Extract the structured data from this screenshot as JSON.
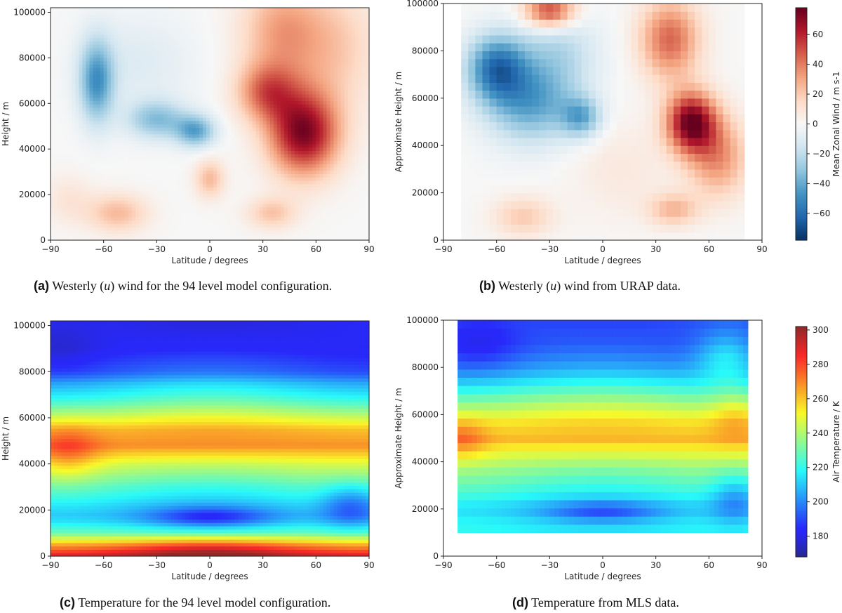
{
  "chart_data": [
    {
      "type": "heatmap",
      "panel": "a",
      "caption_label": "(a)",
      "caption_parts": [
        "Westerly (",
        "u",
        ") wind for the 94 level model configuration."
      ],
      "xlabel": "Latitude / degrees",
      "ylabel": "Height / m",
      "xlim": [
        -90,
        90
      ],
      "ylim": [
        0,
        102000
      ],
      "xticks": [
        -90,
        -60,
        -30,
        0,
        30,
        60,
        90
      ],
      "yticks": [
        0,
        20000,
        40000,
        60000,
        80000,
        100000
      ],
      "colormap": "RdBu_r",
      "vrange": [
        -78,
        78
      ],
      "data_lat_range": [
        -90,
        90
      ],
      "data_height_range": [
        0,
        102000
      ],
      "smooth": true,
      "features": [
        {
          "lat": -64,
          "height": 70000,
          "value": -45,
          "lat_spread": 7,
          "height_spread": 13000
        },
        {
          "lat": -30,
          "height": 53000,
          "value": -32,
          "lat_spread": 12,
          "height_spread": 6000
        },
        {
          "lat": -8,
          "height": 48000,
          "value": -40,
          "lat_spread": 8,
          "height_spread": 5000
        },
        {
          "lat": -40,
          "height": 78000,
          "value": -10,
          "lat_spread": 22,
          "height_spread": 15000
        },
        {
          "lat": 53,
          "height": 47000,
          "value": 72,
          "lat_spread": 14,
          "height_spread": 13000
        },
        {
          "lat": 32,
          "height": 65000,
          "value": 40,
          "lat_spread": 12,
          "height_spread": 9000
        },
        {
          "lat": 40,
          "height": 92000,
          "value": 30,
          "lat_spread": 16,
          "height_spread": 16000
        },
        {
          "lat": 70,
          "height": 85000,
          "value": 20,
          "lat_spread": 18,
          "height_spread": 20000
        },
        {
          "lat": 0,
          "height": 27000,
          "value": 25,
          "lat_spread": 6,
          "height_spread": 6000
        },
        {
          "lat": -52,
          "height": 12000,
          "value": 25,
          "lat_spread": 12,
          "height_spread": 6000
        },
        {
          "lat": 35,
          "height": 12000,
          "value": 22,
          "lat_spread": 10,
          "height_spread": 5000
        },
        {
          "lat": -80,
          "height": 18000,
          "value": 10,
          "lat_spread": 10,
          "height_spread": 8000
        }
      ]
    },
    {
      "type": "heatmap",
      "panel": "b",
      "caption_label": "(b)",
      "caption_parts": [
        "Westerly (",
        "u",
        ") wind from URAP data."
      ],
      "xlabel": "Latitude / degrees",
      "ylabel": "Approximate Height / m",
      "xlim": [
        -90,
        90
      ],
      "ylim": [
        0,
        100000
      ],
      "xticks": [
        -90,
        -60,
        -30,
        0,
        30,
        60,
        90
      ],
      "yticks": [
        0,
        20000,
        40000,
        60000,
        80000,
        100000
      ],
      "colormap": "RdBu_r",
      "vrange": [
        -78,
        78
      ],
      "data_lat_range": [
        -80,
        80
      ],
      "data_height_range": [
        0,
        100000
      ],
      "smooth": false,
      "cells": [
        40,
        30
      ],
      "features": [
        {
          "lat": -60,
          "height": 73000,
          "value": -55,
          "lat_spread": 12,
          "height_spread": 10000
        },
        {
          "lat": -40,
          "height": 58000,
          "value": -40,
          "lat_spread": 18,
          "height_spread": 12000
        },
        {
          "lat": -12,
          "height": 52000,
          "value": -35,
          "lat_spread": 8,
          "height_spread": 6000
        },
        {
          "lat": -25,
          "height": 80000,
          "value": -20,
          "lat_spread": 16,
          "height_spread": 12000
        },
        {
          "lat": 50,
          "height": 50000,
          "value": 75,
          "lat_spread": 10,
          "height_spread": 9000
        },
        {
          "lat": 38,
          "height": 85000,
          "value": 45,
          "lat_spread": 12,
          "height_spread": 12000
        },
        {
          "lat": 65,
          "height": 35000,
          "value": 35,
          "lat_spread": 12,
          "height_spread": 12000
        },
        {
          "lat": -30,
          "height": 97000,
          "value": 55,
          "lat_spread": 10,
          "height_spread": 5000
        },
        {
          "lat": 40,
          "height": 13000,
          "value": 25,
          "lat_spread": 10,
          "height_spread": 5000
        },
        {
          "lat": -45,
          "height": 10000,
          "value": 20,
          "lat_spread": 12,
          "height_spread": 6000
        },
        {
          "lat": 10,
          "height": 30000,
          "value": 8,
          "lat_spread": 20,
          "height_spread": 15000
        }
      ]
    },
    {
      "type": "heatmap",
      "panel": "c",
      "caption_label": "(c)",
      "caption_parts": [
        "Temperature for the 94 level model configuration."
      ],
      "xlabel": "Latitude / degrees",
      "ylabel": "Height / m",
      "xlim": [
        -90,
        90
      ],
      "ylim": [
        0,
        102000
      ],
      "xticks": [
        -90,
        -60,
        -30,
        0,
        30,
        60,
        90
      ],
      "yticks": [
        0,
        20000,
        40000,
        60000,
        80000,
        100000
      ],
      "colormap": "jet",
      "vrange": [
        170,
        300
      ],
      "data_lat_range": [
        -90,
        90
      ],
      "data_height_range": [
        0,
        102000
      ],
      "smooth": true,
      "profile": {
        "heights": [
          0,
          5000,
          10000,
          15000,
          18000,
          22000,
          30000,
          40000,
          48000,
          55000,
          62000,
          68000,
          75000,
          80000,
          90000,
          102000
        ],
        "values": [
          290,
          262,
          228,
          212,
          208,
          212,
          225,
          245,
          268,
          262,
          242,
          225,
          210,
          195,
          185,
          182
        ]
      },
      "features": [
        {
          "lat": 0,
          "height": 3000,
          "value": 20,
          "lat_spread": 35,
          "height_spread": 4000
        },
        {
          "lat": 0,
          "height": 17000,
          "value": -20,
          "lat_spread": 22,
          "height_spread": 3000
        },
        {
          "lat": 80,
          "height": 22000,
          "value": -20,
          "lat_spread": 12,
          "height_spread": 7000
        },
        {
          "lat": -80,
          "height": 45000,
          "value": 15,
          "lat_spread": 12,
          "height_spread": 8000
        },
        {
          "lat": -85,
          "height": 90000,
          "value": -5,
          "lat_spread": 15,
          "height_spread": 8000
        }
      ]
    },
    {
      "type": "heatmap",
      "panel": "d",
      "caption_label": "(d)",
      "caption_parts": [
        "Temperature from MLS data."
      ],
      "xlabel": "Latitude / degrees",
      "ylabel": "Approximate Height / m",
      "xlim": [
        -90,
        90
      ],
      "ylim": [
        0,
        100000
      ],
      "xticks": [
        -90,
        -60,
        -30,
        0,
        30,
        60,
        90
      ],
      "yticks": [
        0,
        20000,
        40000,
        60000,
        80000,
        100000
      ],
      "colormap": "jet",
      "vrange": [
        168,
        302
      ],
      "data_lat_range": [
        -82,
        82
      ],
      "data_height_range": [
        10000,
        100000
      ],
      "smooth": true,
      "cells": [
        60,
        26
      ],
      "profile": {
        "heights": [
          10000,
          15000,
          20000,
          28000,
          35000,
          42000,
          50000,
          57000,
          64000,
          70000,
          76000,
          82000,
          90000,
          100000
        ],
        "values": [
          218,
          215,
          210,
          222,
          232,
          245,
          262,
          255,
          240,
          225,
          210,
          200,
          192,
          190
        ]
      },
      "features": [
        {
          "lat": 0,
          "height": 19000,
          "value": -17,
          "lat_spread": 22,
          "height_spread": 3000
        },
        {
          "lat": -80,
          "height": 50000,
          "value": 15,
          "lat_spread": 10,
          "height_spread": 6000
        },
        {
          "lat": 75,
          "height": 25000,
          "value": -18,
          "lat_spread": 10,
          "height_spread": 8000
        },
        {
          "lat": -70,
          "height": 90000,
          "value": -10,
          "lat_spread": 15,
          "height_spread": 8000
        },
        {
          "lat": 70,
          "height": 85000,
          "value": 20,
          "lat_spread": 12,
          "height_spread": 8000
        },
        {
          "lat": 75,
          "height": 60000,
          "value": 12,
          "lat_spread": 10,
          "height_spread": 8000
        }
      ]
    }
  ],
  "colorbars": [
    {
      "label": "Mean Zonal Wind / m s-1",
      "colormap": "RdBu_r",
      "vrange": [
        -78,
        78
      ],
      "ticks": [
        -60,
        -40,
        -20,
        0,
        20,
        40,
        60
      ]
    },
    {
      "label": "Air Temperature / K",
      "colormap": "jet",
      "vrange": [
        168,
        302
      ],
      "ticks": [
        180,
        200,
        220,
        240,
        260,
        280,
        300
      ]
    }
  ]
}
